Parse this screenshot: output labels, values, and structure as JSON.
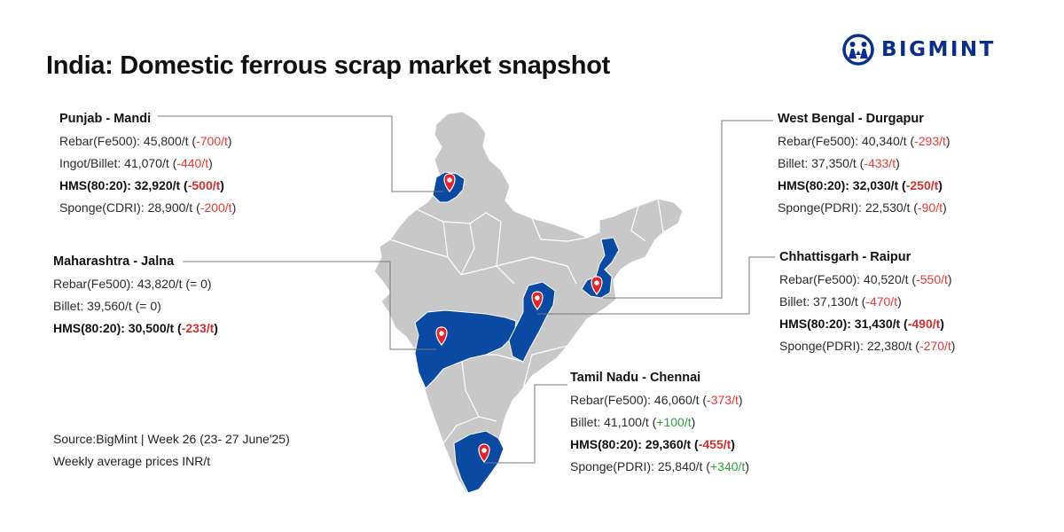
{
  "title": "India: Domestic ferrous scrap market snapshot",
  "brand": {
    "name": "BIGMINT",
    "color": "#0b2e8a",
    "icon": "people-logo-icon"
  },
  "colors": {
    "highlight_state": "#0b4aa2",
    "base_map": "#c8c8c8",
    "negative": "#e53935",
    "positive": "#2e9e3a",
    "pin": "#e3232b"
  },
  "markets": {
    "punjab": {
      "heading": "Punjab - Mandi",
      "rows": [
        {
          "label": "Rebar(Fe500): 45,800/t (",
          "change": "-700/t",
          "suffix": ")",
          "trend": "neg",
          "bold": false
        },
        {
          "label": "Ingot/Billet: 41,070/t (",
          "change": "-440/t",
          "suffix": ")",
          "trend": "neg",
          "bold": false
        },
        {
          "label": "HMS(80:20): 32,920/t (",
          "change": "-500/t",
          "suffix": ")",
          "trend": "neg",
          "bold": true
        },
        {
          "label": "Sponge(CDRI): 28,900/t (",
          "change": "-200/t",
          "suffix": ")",
          "trend": "neg",
          "bold": false
        }
      ]
    },
    "maharashtra": {
      "heading": "Maharashtra - Jalna",
      "rows": [
        {
          "label": "Rebar(Fe500): 43,820/t (= 0)",
          "change": "",
          "suffix": "",
          "trend": "flat",
          "bold": false
        },
        {
          "label": "Billet: 39,560/t (= 0)",
          "change": "",
          "suffix": "",
          "trend": "flat",
          "bold": false
        },
        {
          "label": "HMS(80:20): 30,500/t (",
          "change": "-233/t",
          "suffix": ")",
          "trend": "neg",
          "bold": true
        }
      ]
    },
    "west_bengal": {
      "heading": "West Bengal - Durgapur",
      "rows": [
        {
          "label": "Rebar(Fe500): 40,340/t (",
          "change": "-293/t",
          "suffix": ")",
          "trend": "neg",
          "bold": false
        },
        {
          "label": "Billet: 37,350/t (",
          "change": "-433/t",
          "suffix": ")",
          "trend": "neg",
          "bold": false
        },
        {
          "label": "HMS(80:20): 32,030/t (",
          "change": "-250/t",
          "suffix": ")",
          "trend": "neg",
          "bold": true
        },
        {
          "label": "Sponge(PDRI): 22,530/t (",
          "change": "-90/t",
          "suffix": ")",
          "trend": "neg",
          "bold": false
        }
      ]
    },
    "chhattisgarh": {
      "heading": "Chhattisgarh - Raipur",
      "rows": [
        {
          "label": "Rebar(Fe500): 40,520/t (",
          "change": "-550/t",
          "suffix": ")",
          "trend": "neg",
          "bold": false
        },
        {
          "label": "Billet: 37,130/t (",
          "change": "-470/t",
          "suffix": ")",
          "trend": "neg",
          "bold": false
        },
        {
          "label": "HMS(80:20): 31,430/t (",
          "change": "-490/t",
          "suffix": ")",
          "trend": "neg",
          "bold": true
        },
        {
          "label": "Sponge(PDRI): 22,380/t (",
          "change": "-270/t",
          "suffix": ")",
          "trend": "neg",
          "bold": false
        }
      ]
    },
    "tamil_nadu": {
      "heading": "Tamil Nadu - Chennai",
      "rows": [
        {
          "label": "Rebar(Fe500): 46,060/t (",
          "change": "-373/t",
          "suffix": ")",
          "trend": "neg",
          "bold": false
        },
        {
          "label": "Billet: 41,100/t (",
          "change": "+100/t",
          "suffix": ")",
          "trend": "pos",
          "bold": false
        },
        {
          "label": "HMS(80:20): 29,360/t (",
          "change": "-455/t",
          "suffix": ")",
          "trend": "neg",
          "bold": true
        },
        {
          "label": "Sponge(PDRI): 25,840/t (",
          "change": "+340/t",
          "suffix": ")",
          "trend": "pos",
          "bold": false
        }
      ]
    }
  },
  "source": {
    "line1": "Source:BigMint | Week 26 (23- 27 June'25)",
    "line2": "Weekly average prices INR/t"
  }
}
